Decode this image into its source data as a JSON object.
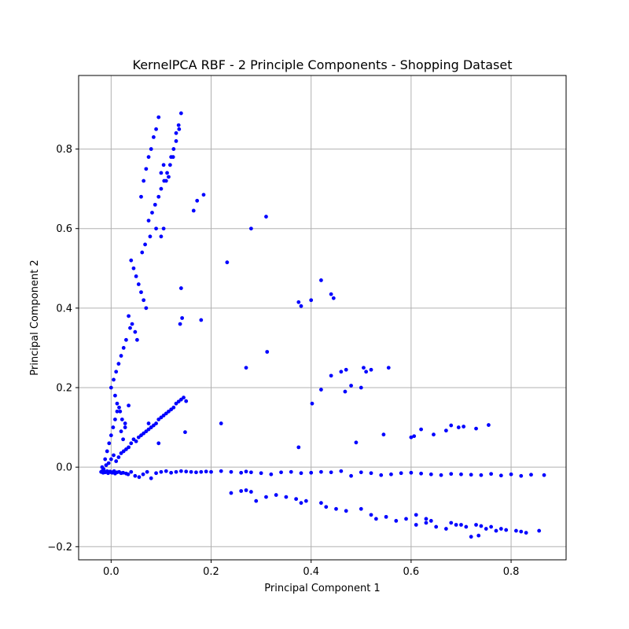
{
  "chart_data": {
    "type": "scatter",
    "title": "KernelPCA RBF - 2 Principle Components - Shopping Dataset",
    "xlabel": "Principal Component 1",
    "ylabel": "Principal Component 2",
    "xlim": [
      -0.065,
      0.91
    ],
    "ylim": [
      -0.233,
      0.985
    ],
    "xticks": [
      0.0,
      0.2,
      0.4,
      0.6,
      0.8
    ],
    "xtick_labels": [
      "0.0",
      "0.2",
      "0.4",
      "0.6",
      "0.8"
    ],
    "yticks": [
      -0.2,
      0.0,
      0.2,
      0.4,
      0.6,
      0.8
    ],
    "ytick_labels": [
      "−0.2",
      "0.0",
      "0.2",
      "0.4",
      "0.6",
      "0.8"
    ],
    "grid": true,
    "marker_color": "#0000ff",
    "series": [
      {
        "x": [
          -0.02,
          -0.018,
          -0.016,
          -0.014,
          -0.012,
          -0.01,
          -0.008,
          -0.006,
          -0.004,
          -0.002,
          0.0,
          0.002,
          0.004,
          0.006,
          0.008,
          0.012,
          0.016,
          0.02,
          0.024,
          0.03,
          0.034,
          0.04,
          0.048,
          0.056,
          0.064,
          0.072,
          0.08,
          0.09,
          0.1,
          0.11,
          0.12,
          0.13,
          0.14,
          0.15,
          0.16,
          0.17,
          0.18,
          0.19,
          0.2,
          0.22,
          0.24,
          0.26,
          0.27,
          0.28,
          0.3,
          0.32,
          0.34,
          0.36,
          0.38,
          0.4,
          0.42,
          0.44,
          0.46,
          0.48,
          0.5,
          0.52,
          0.54,
          0.56,
          0.58,
          0.6,
          0.62,
          0.64,
          0.66,
          0.68,
          0.7,
          0.72,
          0.74,
          0.76,
          0.78,
          0.8,
          0.82,
          0.84,
          0.866,
          -0.015,
          -0.01,
          -0.005,
          0.0,
          0.005,
          0.01,
          0.015,
          0.02,
          0.025,
          0.03,
          0.035,
          0.04,
          0.045,
          0.05,
          0.055,
          0.06,
          0.065,
          0.07,
          0.075,
          0.08,
          0.085,
          0.09,
          0.095,
          0.1,
          0.105,
          0.11,
          0.115,
          0.12,
          0.125,
          0.13,
          0.135,
          0.14,
          0.145,
          -0.018,
          -0.012,
          -0.008,
          -0.004,
          0.0,
          0.004,
          0.008,
          0.012,
          0.016,
          0.02,
          0.024,
          0.028,
          0.035,
          0.06,
          0.065,
          0.07,
          0.075,
          0.08,
          0.085,
          0.09,
          0.095,
          0.1,
          0.105,
          0.11,
          0.115,
          0.12,
          0.125,
          0.13,
          0.135,
          0.14,
          0.075,
          0.082,
          0.088,
          0.095,
          0.1,
          0.106,
          0.112,
          0.118,
          0.124,
          0.13,
          0.136,
          0.09,
          0.078,
          0.068,
          0.062,
          0.04,
          0.045,
          0.05,
          0.055,
          0.06,
          0.065,
          0.07,
          0.035,
          0.042,
          0.048,
          0.03,
          0.025,
          0.02,
          0.015,
          0.01,
          0.005,
          0.0,
          0.008,
          0.012,
          0.018,
          0.022,
          0.028,
          0.038,
          0.052,
          0.1,
          0.105,
          0.14,
          0.15,
          0.165,
          0.172,
          0.185,
          0.142,
          0.138,
          0.18,
          0.148,
          0.232,
          0.28,
          0.31,
          0.42,
          0.4,
          0.38,
          0.375,
          0.44,
          0.445,
          0.312,
          0.27,
          0.22,
          0.095,
          0.075,
          0.42,
          0.44,
          0.46,
          0.47,
          0.48,
          0.5,
          0.505,
          0.51,
          0.52,
          0.555,
          0.545,
          0.402,
          0.49,
          0.468,
          0.606,
          0.62,
          0.645,
          0.67,
          0.68,
          0.695,
          0.705,
          0.73,
          0.755,
          0.375,
          0.6,
          0.24,
          0.26,
          0.27,
          0.28,
          0.29,
          0.31,
          0.33,
          0.35,
          0.37,
          0.38,
          0.39,
          0.42,
          0.43,
          0.45,
          0.47,
          0.5,
          0.52,
          0.53,
          0.55,
          0.57,
          0.59,
          0.61,
          0.63,
          0.65,
          0.67,
          0.69,
          0.71,
          0.73,
          0.75,
          0.77,
          0.79,
          0.81,
          0.83,
          0.856,
          0.72,
          0.735,
          0.61,
          0.63,
          0.64,
          0.68,
          0.7,
          0.74,
          0.76,
          0.78,
          0.82
        ],
        "y": [
          -0.012,
          -0.01,
          -0.014,
          -0.011,
          -0.013,
          -0.012,
          -0.01,
          -0.015,
          -0.012,
          -0.011,
          -0.013,
          -0.014,
          -0.012,
          -0.01,
          -0.016,
          -0.013,
          -0.012,
          -0.015,
          -0.014,
          -0.016,
          -0.018,
          -0.012,
          -0.022,
          -0.025,
          -0.018,
          -0.012,
          -0.028,
          -0.015,
          -0.012,
          -0.01,
          -0.014,
          -0.012,
          -0.01,
          -0.011,
          -0.012,
          -0.013,
          -0.012,
          -0.011,
          -0.012,
          -0.01,
          -0.012,
          -0.014,
          -0.011,
          -0.013,
          -0.015,
          -0.018,
          -0.013,
          -0.012,
          -0.015,
          -0.014,
          -0.012,
          -0.013,
          -0.01,
          -0.022,
          -0.013,
          -0.015,
          -0.02,
          -0.018,
          -0.015,
          -0.014,
          -0.016,
          -0.018,
          -0.02,
          -0.017,
          -0.018,
          -0.019,
          -0.02,
          -0.017,
          -0.021,
          -0.018,
          -0.022,
          -0.019,
          -0.02,
          -0.005,
          0.005,
          0.01,
          0.02,
          0.03,
          0.015,
          0.025,
          0.035,
          0.04,
          0.045,
          0.05,
          0.06,
          0.07,
          0.065,
          0.075,
          0.08,
          0.085,
          0.09,
          0.095,
          0.1,
          0.105,
          0.11,
          0.12,
          0.125,
          0.13,
          0.135,
          0.14,
          0.145,
          0.15,
          0.16,
          0.165,
          0.17,
          0.175,
          0.0,
          0.02,
          0.04,
          0.06,
          0.08,
          0.1,
          0.12,
          0.14,
          0.15,
          0.09,
          0.07,
          0.11,
          0.155,
          0.68,
          0.72,
          0.75,
          0.78,
          0.8,
          0.83,
          0.85,
          0.88,
          0.74,
          0.76,
          0.72,
          0.73,
          0.78,
          0.8,
          0.84,
          0.86,
          0.89,
          0.62,
          0.64,
          0.66,
          0.68,
          0.7,
          0.72,
          0.74,
          0.76,
          0.78,
          0.82,
          0.85,
          0.6,
          0.58,
          0.56,
          0.54,
          0.52,
          0.5,
          0.48,
          0.46,
          0.44,
          0.42,
          0.4,
          0.38,
          0.36,
          0.34,
          0.32,
          0.3,
          0.28,
          0.26,
          0.24,
          0.22,
          0.2,
          0.18,
          0.16,
          0.14,
          0.12,
          0.1,
          0.35,
          0.32,
          0.58,
          0.6,
          0.45,
          0.166,
          0.645,
          0.67,
          0.685,
          0.375,
          0.36,
          0.37,
          0.088,
          0.515,
          0.6,
          0.63,
          0.47,
          0.42,
          0.405,
          0.415,
          0.435,
          0.425,
          0.29,
          0.25,
          0.11,
          0.06,
          0.11,
          0.195,
          0.23,
          0.24,
          0.245,
          0.205,
          0.2,
          0.25,
          0.24,
          0.245,
          0.25,
          0.082,
          0.16,
          0.062,
          0.19,
          0.078,
          0.095,
          0.082,
          0.092,
          0.105,
          0.1,
          0.102,
          0.097,
          0.106,
          0.05,
          0.075,
          -0.065,
          -0.06,
          -0.058,
          -0.062,
          -0.085,
          -0.075,
          -0.07,
          -0.075,
          -0.08,
          -0.09,
          -0.085,
          -0.09,
          -0.1,
          -0.105,
          -0.11,
          -0.105,
          -0.12,
          -0.13,
          -0.125,
          -0.135,
          -0.13,
          -0.145,
          -0.14,
          -0.15,
          -0.155,
          -0.145,
          -0.15,
          -0.145,
          -0.155,
          -0.16,
          -0.158,
          -0.16,
          -0.165,
          -0.16,
          -0.175,
          -0.172,
          -0.12,
          -0.13,
          -0.135,
          -0.14,
          -0.145,
          -0.148,
          -0.15,
          -0.155,
          -0.162
        ]
      }
    ]
  }
}
